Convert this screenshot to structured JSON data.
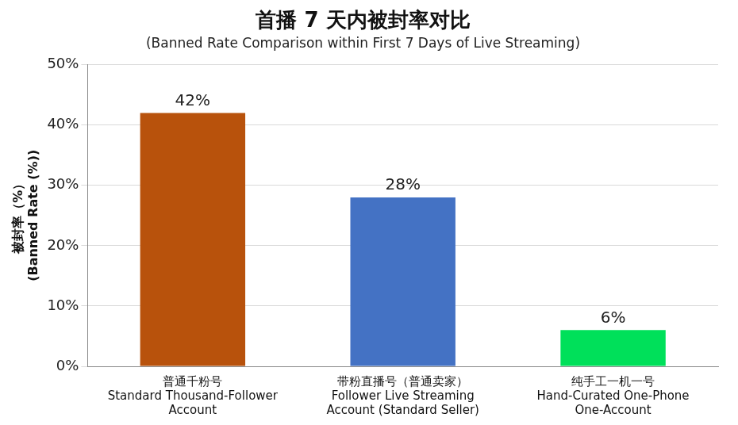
{
  "chart_data": {
    "type": "bar",
    "title": "首播 7 天内被封率对比",
    "subtitle": "(Banned Rate Comparison within First 7 Days of Live Streaming)",
    "ylabel": [
      "被封率（%）",
      "(Banned Rate (%))"
    ],
    "categories": [
      [
        "普通千粉号",
        "Standard Thousand-Follower Account"
      ],
      [
        "带粉直播号（普通卖家）",
        "Follower Live Streaming Account (Standard Seller)"
      ],
      [
        "纯手工一机一号",
        "Hand-Curated One-Phone One-Account"
      ]
    ],
    "values": [
      42,
      28,
      6
    ],
    "value_labels": [
      "42%",
      "28%",
      "6%"
    ],
    "colors": [
      "#b8520c",
      "#4472c4",
      "#00e05a"
    ],
    "ylim": [
      0,
      50
    ],
    "yticks": [
      {
        "value": 0,
        "label": "0%"
      },
      {
        "value": 10,
        "label": "10%"
      },
      {
        "value": 20,
        "label": "20%"
      },
      {
        "value": 30,
        "label": "30%"
      },
      {
        "value": 40,
        "label": "40%"
      },
      {
        "value": 50,
        "label": "50%"
      }
    ],
    "grid": true,
    "data_labels": true
  }
}
